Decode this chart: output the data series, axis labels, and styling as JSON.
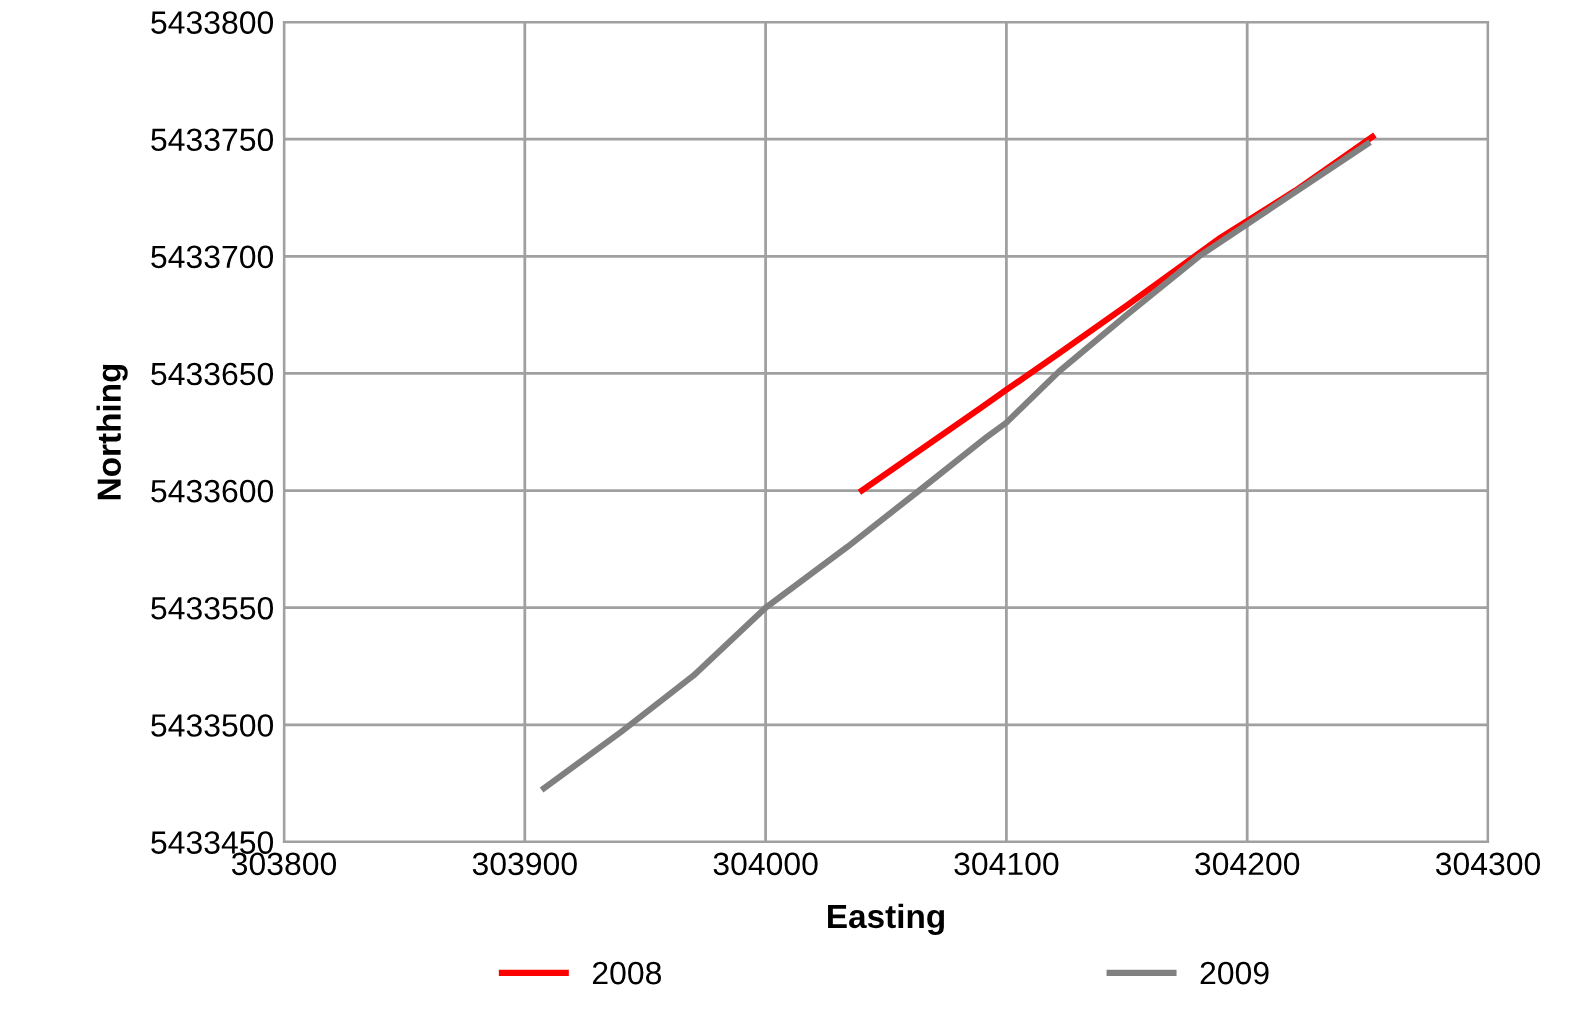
{
  "chart_data": {
    "type": "line",
    "xlabel": "Easting",
    "ylabel": "Northing",
    "xlim": [
      303800,
      304300
    ],
    "xticks": [
      303800,
      303900,
      304000,
      304100,
      304200,
      304300
    ],
    "ylim": [
      5433450,
      5433800
    ],
    "yticks": [
      5433450,
      5433500,
      5433550,
      5433600,
      5433650,
      5433700,
      5433750,
      5433800
    ],
    "grid": true,
    "legend": "bottom",
    "marker": "none",
    "line_style": "solid",
    "series": [
      {
        "name": "2008",
        "color": "#ff0000",
        "x": [
          304040,
          304089,
          304100,
          304121,
          304150,
          304189,
          304220,
          304252
        ],
        "values": [
          5433600,
          5433635,
          5433643,
          5433658,
          5433679,
          5433708,
          5433728,
          5433751
        ]
      },
      {
        "name": "2009",
        "color": "#808080",
        "x": [
          303908,
          303940,
          303970,
          304000,
          304034,
          304065,
          304092,
          304100,
          304122,
          304150,
          304180,
          304215,
          304250
        ],
        "values": [
          5433473,
          5433497,
          5433521,
          5433550,
          5433576,
          5433601,
          5433623,
          5433629,
          5433651,
          5433675,
          5433700,
          5433724,
          5433748
        ]
      }
    ]
  }
}
